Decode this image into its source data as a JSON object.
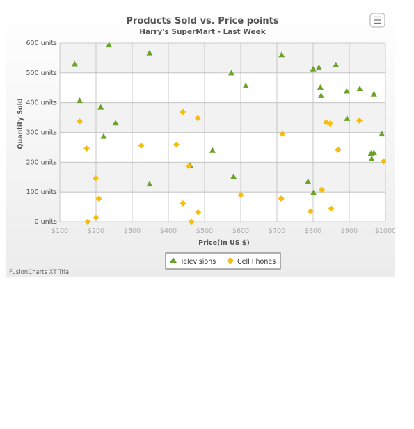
{
  "chart_data": {
    "type": "scatter",
    "title": "Products Sold vs. Price points",
    "subtitle": "Harry's SuperMart - Last Week",
    "xlabel": "Price(In US $)",
    "ylabel": "Quantity Sold",
    "xlim": [
      100,
      1000
    ],
    "ylim": [
      0,
      600
    ],
    "x_ticks": [
      100,
      200,
      300,
      400,
      500,
      600,
      700,
      800,
      900,
      1000
    ],
    "x_tick_labels": [
      "$100",
      "$200",
      "$300",
      "$400",
      "$500",
      "$600",
      "$700",
      "$800",
      "$900",
      "$1000"
    ],
    "y_ticks": [
      0,
      100,
      200,
      300,
      400,
      500,
      600
    ],
    "y_tick_labels": [
      "0 units",
      "100 units",
      "200 units",
      "300 units",
      "400 units",
      "500 units",
      "600 units"
    ],
    "grid": true,
    "legend_position": "bottom",
    "series": [
      {
        "name": "Televisions",
        "color": "#6ba32a",
        "marker": "triangle",
        "points": [
          [
            141,
            530
          ],
          [
            155,
            407
          ],
          [
            213,
            385
          ],
          [
            221,
            287
          ],
          [
            236,
            594
          ],
          [
            254,
            332
          ],
          [
            348,
            567
          ],
          [
            348,
            127
          ],
          [
            460,
            190
          ],
          [
            522,
            240
          ],
          [
            574,
            500
          ],
          [
            580,
            152
          ],
          [
            614,
            457
          ],
          [
            713,
            561
          ],
          [
            786,
            135
          ],
          [
            800,
            513
          ],
          [
            801,
            98
          ],
          [
            816,
            518
          ],
          [
            820,
            452
          ],
          [
            822,
            424
          ],
          [
            863,
            527
          ],
          [
            893,
            439
          ],
          [
            894,
            347
          ],
          [
            929,
            447
          ],
          [
            960,
            230
          ],
          [
            962,
            212
          ],
          [
            968,
            232
          ],
          [
            968,
            429
          ],
          [
            990,
            295
          ]
        ]
      },
      {
        "name": "Cell Phones",
        "color": "#f6bd0f",
        "marker": "diamond",
        "points": [
          [
            155,
            337
          ],
          [
            174,
            246
          ],
          [
            177,
            0
          ],
          [
            199,
            146
          ],
          [
            200,
            14
          ],
          [
            208,
            78
          ],
          [
            325,
            256
          ],
          [
            422,
            259
          ],
          [
            440,
            369
          ],
          [
            440,
            62
          ],
          [
            457,
            187
          ],
          [
            464,
            0
          ],
          [
            481,
            348
          ],
          [
            482,
            32
          ],
          [
            600,
            90
          ],
          [
            712,
            78
          ],
          [
            715,
            295
          ],
          [
            793,
            35
          ],
          [
            824,
            107
          ],
          [
            836,
            334
          ],
          [
            847,
            330
          ],
          [
            850,
            45
          ],
          [
            869,
            242
          ],
          [
            928,
            340
          ],
          [
            995,
            203
          ]
        ]
      }
    ]
  },
  "trial_text": "FusionCharts XT Trial",
  "menu_icon": "menu-icon"
}
